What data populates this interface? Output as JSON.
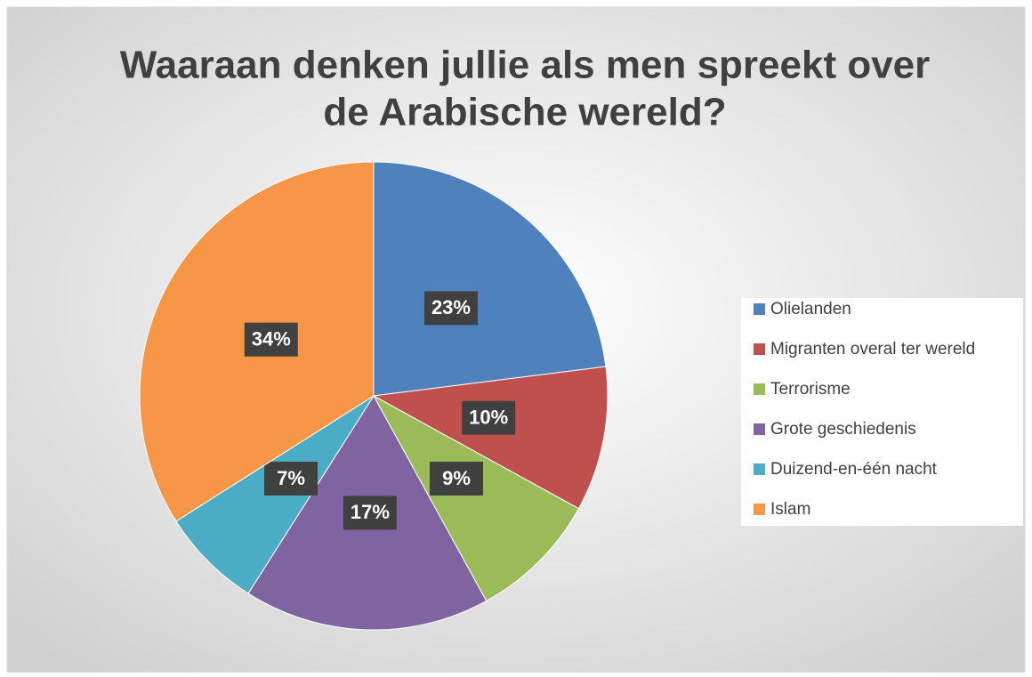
{
  "chart_data": {
    "type": "pie",
    "title_lines": [
      "Waaraan denken jullie als men spreekt over",
      "de Arabische wereld?"
    ],
    "categories": [
      "Olielanden",
      "Migranten overal ter wereld",
      "Terrorisme",
      "Grote geschiedenis",
      "Duizend-en-één nacht",
      "Islam"
    ],
    "values": [
      23,
      10,
      9,
      17,
      7,
      34
    ],
    "value_labels": [
      "23%",
      "10%",
      "9%",
      "17%",
      "7%",
      "34%"
    ],
    "colors": [
      "#4f81bd",
      "#c0504d",
      "#9bbb59",
      "#8064a2",
      "#4bacc6",
      "#f79646"
    ],
    "legend": "right"
  }
}
